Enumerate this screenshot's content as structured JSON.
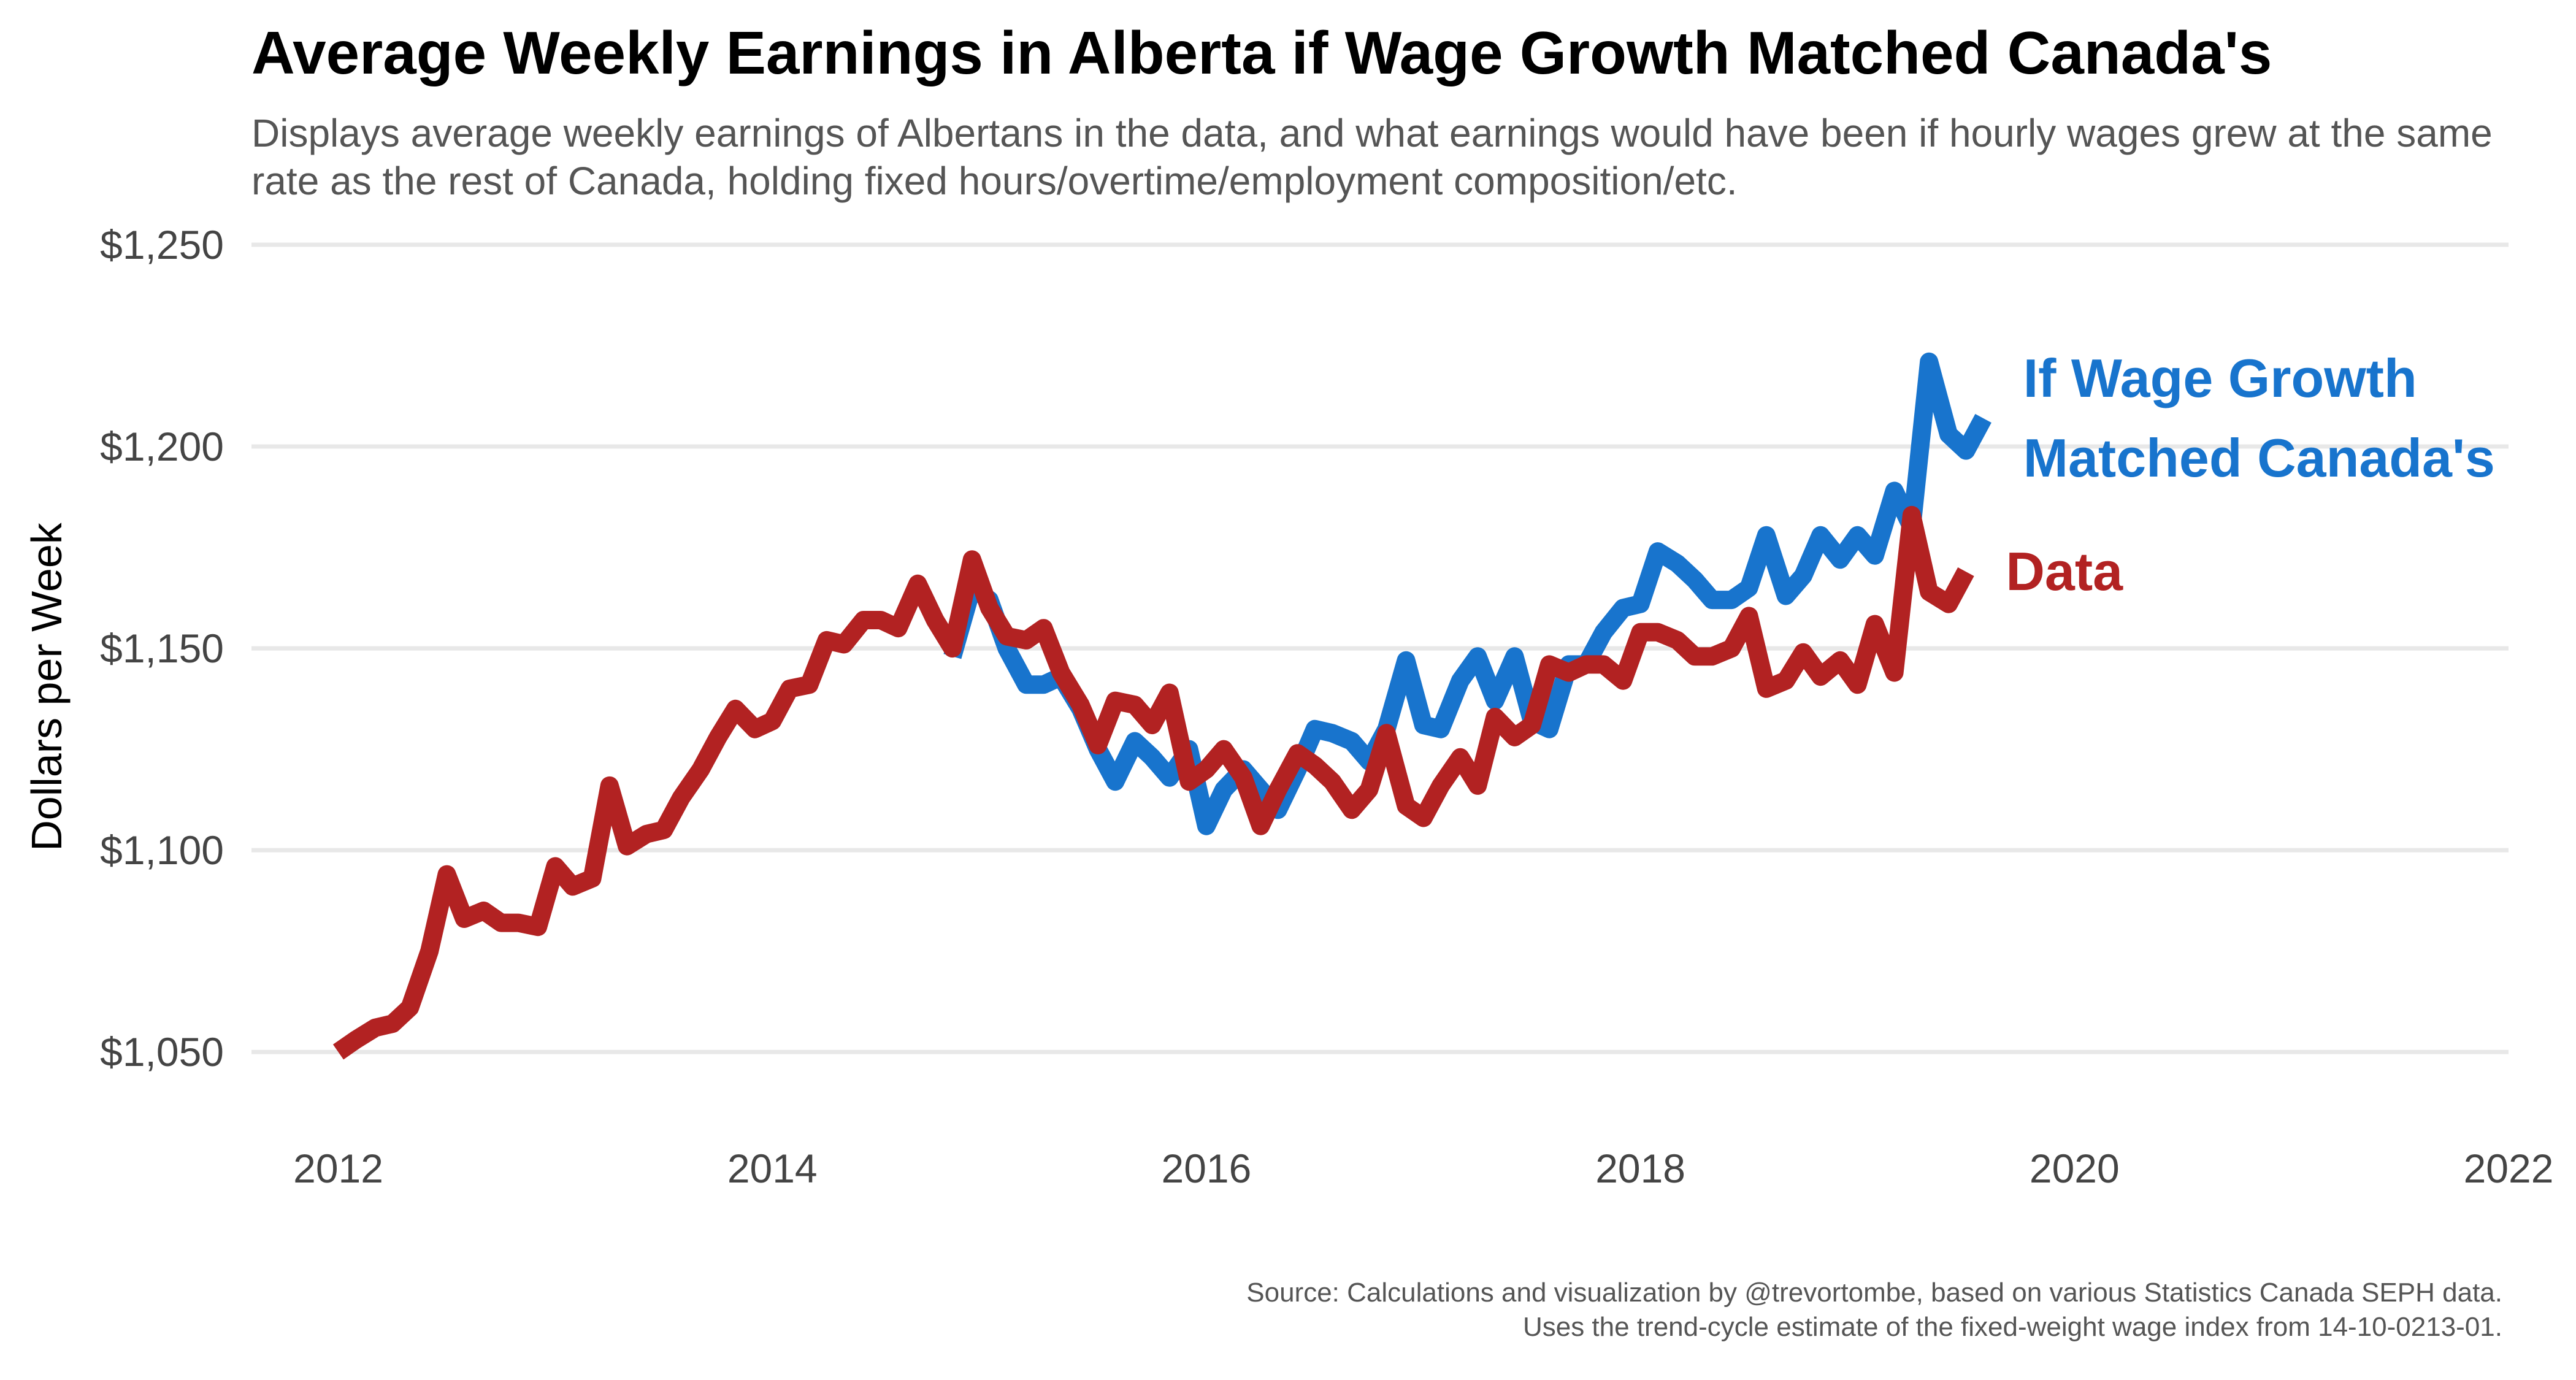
{
  "title": "Average Weekly Earnings in Alberta if Wage Growth Matched Canada's",
  "subtitle": "Displays average weekly earnings of Albertans in the data, and what earnings would have been if hourly wages grew at the same rate as the rest of Canada, holding fixed hours/overtime/employment composition/etc.",
  "caption": {
    "line1": "Source: Calculations and visualization by @trevortombe, based on various Statistics Canada SEPH data.",
    "line2": "Uses the trend-cycle estimate of the fixed-weight wage index from 14-10-0213-01."
  },
  "colors": {
    "data": "#B22222",
    "counterfactual": "#1874CD",
    "grid": "#E8E8E8"
  },
  "chart_data": {
    "type": "line",
    "ylabel": "Dollars per Week",
    "xlabel": "",
    "xlim": [
      2011.6,
      2022
    ],
    "ylim": [
      1028,
      1262
    ],
    "x_ticks": [
      2012,
      2014,
      2016,
      2018,
      2020,
      2022
    ],
    "x_tick_labels": [
      "2012",
      "2014",
      "2016",
      "2018",
      "2020",
      "2022"
    ],
    "y_ticks": [
      1050,
      1100,
      1150,
      1200,
      1250
    ],
    "y_tick_labels": [
      "$1,050",
      "$1,100",
      "$1,150",
      "$1,200",
      "$1,250"
    ],
    "grid": true,
    "legend": "direct labels at right end of lines",
    "series": [
      {
        "name": "If Wage Growth Matched Canada's",
        "label_lines": [
          "If Wage Growth",
          "Matched Canada's"
        ],
        "color": "#1874CD",
        "points": [
          [
            2014.83,
            1148
          ],
          [
            2014.92,
            1165
          ],
          [
            2015.0,
            1162
          ],
          [
            2015.08,
            1150
          ],
          [
            2015.17,
            1141
          ],
          [
            2015.25,
            1141
          ],
          [
            2015.33,
            1143
          ],
          [
            2015.42,
            1135
          ],
          [
            2015.5,
            1125
          ],
          [
            2015.58,
            1117
          ],
          [
            2015.67,
            1127
          ],
          [
            2015.75,
            1123
          ],
          [
            2015.83,
            1118
          ],
          [
            2015.92,
            1125
          ],
          [
            2016.0,
            1106
          ],
          [
            2016.08,
            1115
          ],
          [
            2016.17,
            1120
          ],
          [
            2016.25,
            1115
          ],
          [
            2016.33,
            1110
          ],
          [
            2016.42,
            1120
          ],
          [
            2016.5,
            1130
          ],
          [
            2016.58,
            1129
          ],
          [
            2016.67,
            1127
          ],
          [
            2016.75,
            1122
          ],
          [
            2016.83,
            1130
          ],
          [
            2016.92,
            1147
          ],
          [
            2017.0,
            1131
          ],
          [
            2017.08,
            1130
          ],
          [
            2017.17,
            1142
          ],
          [
            2017.25,
            1148
          ],
          [
            2017.33,
            1137
          ],
          [
            2017.42,
            1148
          ],
          [
            2017.5,
            1132
          ],
          [
            2017.58,
            1130
          ],
          [
            2017.67,
            1146
          ],
          [
            2017.75,
            1146
          ],
          [
            2017.83,
            1154
          ],
          [
            2017.92,
            1160
          ],
          [
            2018.0,
            1161
          ],
          [
            2018.08,
            1174
          ],
          [
            2018.17,
            1171
          ],
          [
            2018.25,
            1167
          ],
          [
            2018.33,
            1162
          ],
          [
            2018.42,
            1162
          ],
          [
            2018.5,
            1165
          ],
          [
            2018.58,
            1178
          ],
          [
            2018.67,
            1163
          ],
          [
            2018.75,
            1168
          ],
          [
            2018.83,
            1178
          ],
          [
            2018.92,
            1172
          ],
          [
            2019.0,
            1178
          ],
          [
            2019.08,
            1173
          ],
          [
            2019.17,
            1189
          ],
          [
            2019.25,
            1180
          ],
          [
            2019.33,
            1221
          ],
          [
            2019.42,
            1203
          ],
          [
            2019.5,
            1199
          ],
          [
            2019.58,
            1207
          ]
        ]
      },
      {
        "name": "Data",
        "label_lines": [
          "Data"
        ],
        "color": "#B22222",
        "points": [
          [
            2012.0,
            1050
          ],
          [
            2012.08,
            1053
          ],
          [
            2012.17,
            1056
          ],
          [
            2012.25,
            1057
          ],
          [
            2012.33,
            1061
          ],
          [
            2012.42,
            1075
          ],
          [
            2012.5,
            1094
          ],
          [
            2012.58,
            1083
          ],
          [
            2012.67,
            1085
          ],
          [
            2012.75,
            1082
          ],
          [
            2012.83,
            1082
          ],
          [
            2012.92,
            1081
          ],
          [
            2013.0,
            1096
          ],
          [
            2013.08,
            1091
          ],
          [
            2013.17,
            1093
          ],
          [
            2013.25,
            1116
          ],
          [
            2013.33,
            1101
          ],
          [
            2013.42,
            1104
          ],
          [
            2013.5,
            1105
          ],
          [
            2013.58,
            1113
          ],
          [
            2013.67,
            1120
          ],
          [
            2013.75,
            1128
          ],
          [
            2013.83,
            1135
          ],
          [
            2013.92,
            1130
          ],
          [
            2014.0,
            1132
          ],
          [
            2014.08,
            1140
          ],
          [
            2014.17,
            1141
          ],
          [
            2014.25,
            1152
          ],
          [
            2014.33,
            1151
          ],
          [
            2014.42,
            1157
          ],
          [
            2014.5,
            1157
          ],
          [
            2014.58,
            1155
          ],
          [
            2014.67,
            1166
          ],
          [
            2014.75,
            1157
          ],
          [
            2014.83,
            1150
          ],
          [
            2014.92,
            1172
          ],
          [
            2015.0,
            1160
          ],
          [
            2015.08,
            1153
          ],
          [
            2015.17,
            1152
          ],
          [
            2015.25,
            1155
          ],
          [
            2015.33,
            1144
          ],
          [
            2015.42,
            1136
          ],
          [
            2015.5,
            1126
          ],
          [
            2015.58,
            1137
          ],
          [
            2015.67,
            1136
          ],
          [
            2015.75,
            1131
          ],
          [
            2015.83,
            1139
          ],
          [
            2015.92,
            1117
          ],
          [
            2016.0,
            1120
          ],
          [
            2016.08,
            1125
          ],
          [
            2016.17,
            1118
          ],
          [
            2016.25,
            1106
          ],
          [
            2016.33,
            1115
          ],
          [
            2016.42,
            1124
          ],
          [
            2016.5,
            1121
          ],
          [
            2016.58,
            1117
          ],
          [
            2016.67,
            1110
          ],
          [
            2016.75,
            1115
          ],
          [
            2016.83,
            1129
          ],
          [
            2016.92,
            1111
          ],
          [
            2017.0,
            1108
          ],
          [
            2017.08,
            1116
          ],
          [
            2017.17,
            1123
          ],
          [
            2017.25,
            1116
          ],
          [
            2017.33,
            1133
          ],
          [
            2017.42,
            1128
          ],
          [
            2017.5,
            1131
          ],
          [
            2017.58,
            1146
          ],
          [
            2017.67,
            1144
          ],
          [
            2017.75,
            1146
          ],
          [
            2017.83,
            1146
          ],
          [
            2017.92,
            1142
          ],
          [
            2018.0,
            1154
          ],
          [
            2018.08,
            1154
          ],
          [
            2018.17,
            1152
          ],
          [
            2018.25,
            1148
          ],
          [
            2018.33,
            1148
          ],
          [
            2018.42,
            1150
          ],
          [
            2018.5,
            1158
          ],
          [
            2018.58,
            1140
          ],
          [
            2018.67,
            1142
          ],
          [
            2018.75,
            1149
          ],
          [
            2018.83,
            1143
          ],
          [
            2018.92,
            1147
          ],
          [
            2019.0,
            1141
          ],
          [
            2019.08,
            1156
          ],
          [
            2019.17,
            1144
          ],
          [
            2019.25,
            1183
          ],
          [
            2019.33,
            1164
          ],
          [
            2019.42,
            1161
          ],
          [
            2019.5,
            1169
          ]
        ]
      }
    ]
  }
}
